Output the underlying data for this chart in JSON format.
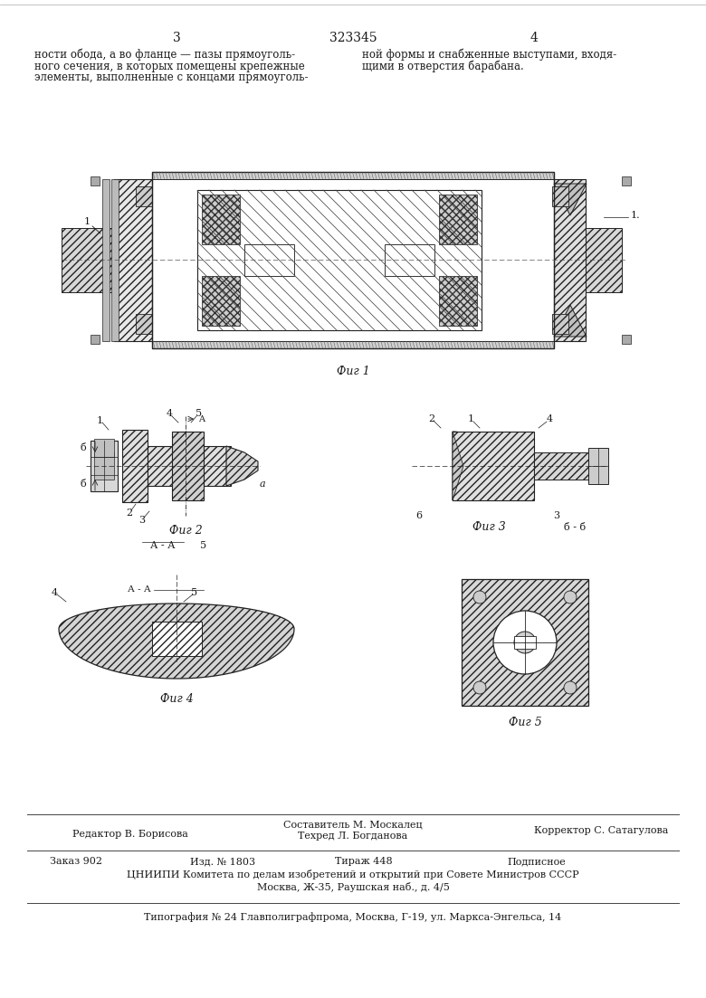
{
  "bg_color": "#ffffff",
  "text_color": "#1a1a1a",
  "page_number_left": "3",
  "page_number_right": "4",
  "patent_number": "323345",
  "top_text_left1": "ности обода, а во фланце — пазы прямоуголь-",
  "top_text_left2": "ного сечения, в которых помещены крепежные",
  "top_text_left3": "элементы, выполненные с концами прямоуголь-",
  "top_text_right1": "ной формы и снабженные выступами, входя-",
  "top_text_right2": "щими в отверстия барабана.",
  "fig1_label": "Фиг 1",
  "fig2_label": "Фиг 2",
  "fig3_label": "Фиг 3",
  "fig4_label": "Фиг 4",
  "fig5_label": "Фиг 5",
  "bottom_editor": "Редактор В. Борисова",
  "bottom_composer": "Составитель М. Москалец",
  "bottom_techred": "Техред Л. Богданова",
  "bottom_corrector": "Корректор С. Сатагулова",
  "bottom_order": "Заказ 902",
  "bottom_izd": "Изд. № 1803",
  "bottom_tirazh": "Тираж 448",
  "bottom_podpisnoe": "Подписное",
  "bottom_cniip": "ЦНИИПИ Комитета по делам изобретений и открытий при Совете Министров СССР",
  "bottom_moscow": "Москва, Ж-35, Раушская наб., д. 4/5",
  "bottom_typography": "Типография № 24 Главполиграфпрома, Москва, Г-19, ул. Маркса-Энгельса, 14"
}
